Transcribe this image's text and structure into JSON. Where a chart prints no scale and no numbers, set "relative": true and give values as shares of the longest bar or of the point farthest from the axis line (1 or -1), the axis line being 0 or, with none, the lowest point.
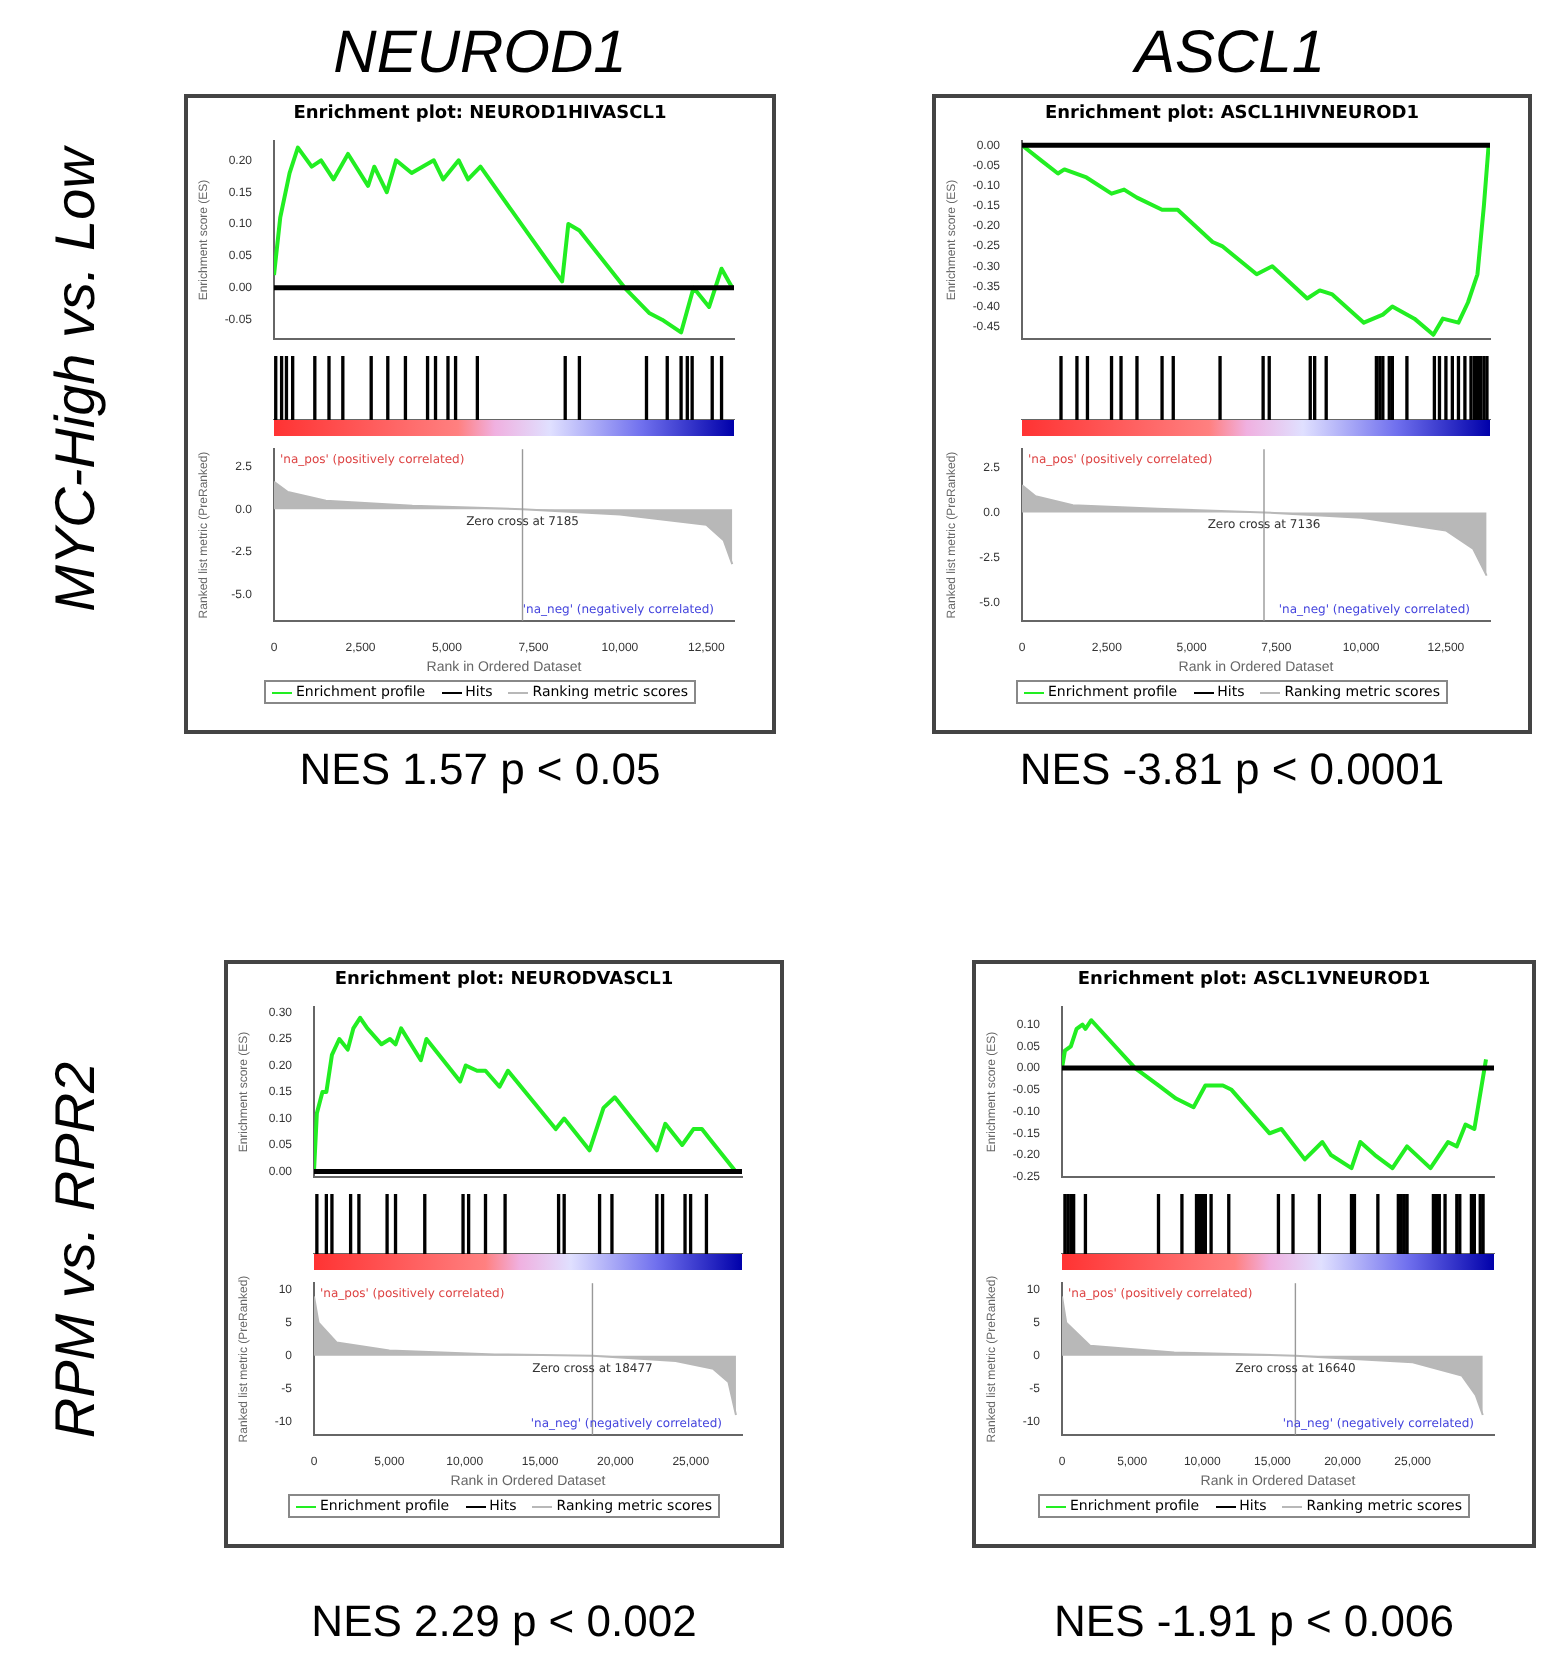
{
  "chart_data": [
    {
      "type": "line",
      "title": "Enrichment plot: NEUROD1HIVASCL1",
      "ylabel": "Enrichment score (ES)",
      "legend": "bottom",
      "tick_labels": "y",
      "xlim": [
        0,
        13300
      ],
      "ylim": [
        -0.08,
        0.23
      ],
      "yticks": [
        {
          "value": -0.05,
          "label": "-0.05"
        },
        {
          "value": 0,
          "label": "0.00"
        },
        {
          "value": 0.05,
          "label": "0.05"
        },
        {
          "value": 0.1,
          "label": "0.10"
        },
        {
          "value": 0.15,
          "label": "0.15"
        },
        {
          "value": 0.2,
          "label": "0.20"
        }
      ],
      "series": [
        {
          "name": "Enrichment profile",
          "color": "#22ee22",
          "x": [
            0,
            180,
            450,
            690,
            1090,
            1360,
            1720,
            2140,
            2720,
            2900,
            3260,
            3530,
            3980,
            4620,
            4890,
            5340,
            5610,
            5970,
            8330,
            8510,
            8830,
            10140,
            10860,
            11220,
            11770,
            12130,
            12580,
            12940,
            13250
          ],
          "values": [
            0.02,
            0.11,
            0.18,
            0.22,
            0.19,
            0.2,
            0.17,
            0.21,
            0.16,
            0.19,
            0.15,
            0.2,
            0.18,
            0.2,
            0.17,
            0.2,
            0.17,
            0.19,
            0.01,
            0.1,
            0.09,
            0,
            -0.04,
            -0.05,
            -0.07,
            0,
            -0.03,
            0.03,
            0
          ]
        }
      ],
      "ref_lines": [
        {
          "axis": "y",
          "value": 0,
          "color": "#000000"
        }
      ],
      "annotations": [
        "NEUROD1",
        "MYC-High vs. Low",
        "NES 1.57 p < 0.05"
      ]
    },
    {
      "type": "bar",
      "relative": true,
      "legend": "bottom",
      "tick_labels": false,
      "xlim": [
        0,
        13300
      ],
      "series": [
        {
          "name": "Hits",
          "color": "#000000",
          "x": [
            50,
            220,
            360,
            540,
            1180,
            1590,
            1990,
            2810,
            3290,
            3800,
            4440,
            4670,
            5030,
            5250,
            5880,
            8420,
            8830,
            10770,
            11370,
            11770,
            11950,
            12090,
            12670,
            12940
          ],
          "values": [
            1,
            1,
            1,
            1,
            1,
            1,
            1,
            1,
            1,
            1,
            1,
            1,
            1,
            1,
            1,
            1,
            1,
            1,
            1,
            1,
            1,
            1,
            1,
            1
          ]
        }
      ]
    },
    {
      "type": "area",
      "ylabel": "Ranked list metric (PreRanked)",
      "xlabel": "Rank in Ordered Dataset",
      "legend": "bottom",
      "xlim": [
        0,
        13300
      ],
      "xticks": [
        {
          "value": 0,
          "label": "0"
        },
        {
          "value": 2500,
          "label": "2,500"
        },
        {
          "value": 5000,
          "label": "5,000"
        },
        {
          "value": 7500,
          "label": "7,500"
        },
        {
          "value": 10000,
          "label": "10,000"
        },
        {
          "value": 12500,
          "label": "12,500"
        }
      ],
      "ylim": [
        -6.5,
        3.5
      ],
      "yticks": [
        {
          "value": 2.5,
          "label": "2.5"
        },
        {
          "value": 0,
          "label": "0.0"
        },
        {
          "value": -2.5,
          "label": "-2.5"
        },
        {
          "value": -5,
          "label": "-5.0"
        }
      ],
      "series": [
        {
          "name": "Ranking metric scores",
          "color": "#b8b8b8",
          "x": [
            0,
            400,
            1500,
            4000,
            7185,
            10000,
            12500,
            13000,
            13250
          ],
          "values": [
            1.6,
            1,
            0.5,
            0.2,
            0,
            -0.3,
            -0.9,
            -1.8,
            -3.2
          ]
        }
      ],
      "ref_lines": [
        {
          "axis": "x",
          "value": 7185,
          "label": "Zero cross at 7185",
          "color": "#999999"
        }
      ],
      "annotations": [
        "'na_pos' (positively correlated)",
        "'na_neg' (negatively correlated)"
      ]
    },
    {
      "type": "line",
      "title": "Enrichment plot: ASCL1HIVNEUROD1",
      "ylabel": "Enrichment score (ES)",
      "legend": "bottom",
      "tick_labels": "y",
      "xlim": [
        0,
        13800
      ],
      "ylim": [
        -0.48,
        0.01
      ],
      "yticks": [
        {
          "value": 0,
          "label": "0.00"
        },
        {
          "value": -0.05,
          "label": "-0.05"
        },
        {
          "value": -0.1,
          "label": "-0.10"
        },
        {
          "value": -0.15,
          "label": "-0.15"
        },
        {
          "value": -0.2,
          "label": "-0.20"
        },
        {
          "value": -0.25,
          "label": "-0.25"
        },
        {
          "value": -0.3,
          "label": "-0.30"
        },
        {
          "value": -0.35,
          "label": "-0.35"
        },
        {
          "value": -0.4,
          "label": "-0.40"
        },
        {
          "value": -0.45,
          "label": "-0.45"
        }
      ],
      "series": [
        {
          "name": "Enrichment profile",
          "color": "#22ee22",
          "x": [
            0,
            600,
            1060,
            1250,
            1900,
            2640,
            3010,
            3390,
            4130,
            4590,
            5620,
            5900,
            6920,
            7380,
            8410,
            8780,
            9150,
            10080,
            10640,
            10920,
            11570,
            12130,
            12410,
            12870,
            13150,
            13430,
            13620,
            13760
          ],
          "values": [
            0,
            -0.04,
            -0.07,
            -0.06,
            -0.08,
            -0.12,
            -0.11,
            -0.13,
            -0.16,
            -0.16,
            -0.24,
            -0.25,
            -0.32,
            -0.3,
            -0.38,
            -0.36,
            -0.37,
            -0.44,
            -0.42,
            -0.4,
            -0.43,
            -0.47,
            -0.43,
            -0.44,
            -0.39,
            -0.32,
            -0.15,
            0
          ]
        }
      ],
      "ref_lines": [
        {
          "axis": "y",
          "value": 0,
          "color": "#000000"
        }
      ],
      "annotations": [
        "ASCL1",
        "NES -3.81 p < 0.0001"
      ]
    },
    {
      "type": "bar",
      "relative": true,
      "legend": "bottom",
      "tick_labels": false,
      "xlim": [
        0,
        13800
      ],
      "series": [
        {
          "name": "Hits",
          "color": "#000000",
          "x": [
            1150,
            1620,
            1930,
            2640,
            2920,
            3390,
            4130,
            4460,
            5840,
            7110,
            7290,
            8500,
            8630,
            8970,
            10450,
            10550,
            10640,
            10830,
            10920,
            11350,
            12160,
            12310,
            12500,
            12690,
            12870,
            13060,
            13240,
            13340,
            13430,
            13520,
            13620,
            13710
          ],
          "values": [
            1,
            1,
            1,
            1,
            1,
            1,
            1,
            1,
            1,
            1,
            1,
            1,
            1,
            1,
            1,
            1,
            1,
            1,
            1,
            1,
            1,
            1,
            1,
            1,
            1,
            1,
            1,
            1,
            1,
            1,
            1,
            1
          ]
        }
      ]
    },
    {
      "type": "area",
      "ylabel": "Ranked list metric (PreRanked)",
      "xlabel": "Rank in Ordered Dataset",
      "legend": "bottom",
      "xlim": [
        0,
        13800
      ],
      "xticks": [
        {
          "value": 0,
          "label": "0"
        },
        {
          "value": 2500,
          "label": "2,500"
        },
        {
          "value": 5000,
          "label": "5,000"
        },
        {
          "value": 7500,
          "label": "7,500"
        },
        {
          "value": 10000,
          "label": "10,000"
        },
        {
          "value": 12500,
          "label": "12,500"
        }
      ],
      "ylim": [
        -6,
        3.5
      ],
      "yticks": [
        {
          "value": 2.5,
          "label": "2.5"
        },
        {
          "value": 0,
          "label": "0.0"
        },
        {
          "value": -2.5,
          "label": "-2.5"
        },
        {
          "value": -5,
          "label": "-5.0"
        }
      ],
      "series": [
        {
          "name": "Ranking metric scores",
          "color": "#b8b8b8",
          "x": [
            0,
            400,
            1500,
            4000,
            7136,
            10000,
            12500,
            13300,
            13700
          ],
          "values": [
            1.5,
            0.9,
            0.4,
            0.2,
            0,
            -0.3,
            -1,
            -2,
            -3.5
          ]
        }
      ],
      "ref_lines": [
        {
          "axis": "x",
          "value": 7136,
          "label": "Zero cross at 7136",
          "color": "#999999"
        }
      ],
      "annotations": [
        "'na_pos' (positively correlated)",
        "'na_neg' (negatively correlated)"
      ]
    },
    {
      "type": "line",
      "title": "Enrichment plot: NEURODVASCL1",
      "ylabel": "Enrichment score (ES)",
      "legend": "bottom",
      "tick_labels": "y",
      "xlim": [
        0,
        28400
      ],
      "ylim": [
        -0.01,
        0.31
      ],
      "yticks": [
        {
          "value": 0,
          "label": "0.00"
        },
        {
          "value": 0.05,
          "label": "0.05"
        },
        {
          "value": 0.1,
          "label": "0.10"
        },
        {
          "value": 0.15,
          "label": "0.15"
        },
        {
          "value": 0.2,
          "label": "0.20"
        },
        {
          "value": 0.25,
          "label": "0.25"
        },
        {
          "value": 0.3,
          "label": "0.30"
        }
      ],
      "series": [
        {
          "name": "Enrichment profile",
          "color": "#22ee22",
          "x": [
            0,
            190,
            560,
            820,
            1190,
            1680,
            2240,
            2610,
            3060,
            3540,
            4480,
            5040,
            5410,
            5780,
            7090,
            7460,
            9700,
            10070,
            10820,
            11380,
            12310,
            12870,
            16040,
            16600,
            18280,
            19210,
            19960,
            22750,
            23310,
            24430,
            25180,
            25740,
            26300,
            27980
          ],
          "values": [
            0,
            0.11,
            0.15,
            0.15,
            0.22,
            0.25,
            0.23,
            0.27,
            0.29,
            0.27,
            0.24,
            0.25,
            0.24,
            0.27,
            0.21,
            0.25,
            0.17,
            0.2,
            0.19,
            0.19,
            0.16,
            0.19,
            0.08,
            0.1,
            0.04,
            0.12,
            0.14,
            0.04,
            0.09,
            0.05,
            0.08,
            0.08,
            0.06,
            0
          ]
        }
      ],
      "ref_lines": [
        {
          "axis": "y",
          "value": 0,
          "color": "#000000"
        }
      ],
      "annotations": [
        "RPM vs. RPR2",
        "NES 2.29 p < 0.002"
      ]
    },
    {
      "type": "bar",
      "relative": true,
      "legend": "bottom",
      "tick_labels": false,
      "xlim": [
        0,
        28400
      ],
      "series": [
        {
          "name": "Hits",
          "color": "#000000",
          "x": [
            190,
            820,
            1190,
            2430,
            2980,
            4850,
            5410,
            7350,
            9890,
            10260,
            11380,
            12680,
            16230,
            16600,
            18950,
            19770,
            22750,
            23130,
            24620,
            24990,
            26040
          ],
          "values": [
            1,
            1,
            1,
            1,
            1,
            1,
            1,
            1,
            1,
            1,
            1,
            1,
            1,
            1,
            1,
            1,
            1,
            1,
            1,
            1,
            1
          ]
        }
      ]
    },
    {
      "type": "area",
      "ylabel": "Ranked list metric (PreRanked)",
      "xlabel": "Rank in Ordered Dataset",
      "legend": "bottom",
      "xlim": [
        0,
        28400
      ],
      "xticks": [
        {
          "value": 0,
          "label": "0"
        },
        {
          "value": 5000,
          "label": "5,000"
        },
        {
          "value": 10000,
          "label": "10,000"
        },
        {
          "value": 15000,
          "label": "15,000"
        },
        {
          "value": 20000,
          "label": "20,000"
        },
        {
          "value": 25000,
          "label": "25,000"
        }
      ],
      "ylim": [
        -12,
        11
      ],
      "yticks": [
        10,
        5,
        0,
        -5,
        -10
      ],
      "series": [
        {
          "name": "Ranking metric scores",
          "color": "#b8b8b8",
          "x": [
            0,
            300,
            1500,
            5000,
            12000,
            18477,
            24000,
            26500,
            27500,
            28000
          ],
          "values": [
            9,
            5,
            2,
            0.8,
            0.2,
            0,
            -0.8,
            -2,
            -4,
            -9
          ]
        }
      ],
      "ref_lines": [
        {
          "axis": "x",
          "value": 18477,
          "label": "Zero cross at 18477",
          "color": "#999999"
        }
      ],
      "annotations": [
        "'na_pos' (positively correlated)",
        "'na_neg' (negatively correlated)"
      ]
    },
    {
      "type": "line",
      "title": "Enrichment plot: ASCL1VNEUROD1",
      "ylabel": "Enrichment score (ES)",
      "legend": "bottom",
      "tick_labels": "y",
      "xlim": [
        0,
        30800
      ],
      "ylim": [
        -0.25,
        0.14
      ],
      "yticks": [
        {
          "value": 0.1,
          "label": "0.10"
        },
        {
          "value": 0.05,
          "label": "0.05"
        },
        {
          "value": 0,
          "label": "0.00"
        },
        {
          "value": -0.05,
          "label": "-0.05"
        },
        {
          "value": -0.1,
          "label": "-0.10"
        },
        {
          "value": -0.15,
          "label": "-0.15"
        },
        {
          "value": -0.2,
          "label": "-0.20"
        },
        {
          "value": -0.25,
          "label": "-0.25"
        }
      ],
      "series": [
        {
          "name": "Enrichment profile",
          "color": "#22ee22",
          "x": [
            0,
            210,
            630,
            1040,
            1460,
            1670,
            2090,
            5210,
            6880,
            8130,
            9380,
            10220,
            11470,
            12090,
            14800,
            15640,
            17310,
            18560,
            19180,
            20640,
            21270,
            22310,
            23560,
            24600,
            26270,
            27520,
            28150,
            28770,
            29400,
            30230
          ],
          "values": [
            0,
            0.04,
            0.05,
            0.09,
            0.1,
            0.09,
            0.11,
            0,
            -0.04,
            -0.07,
            -0.09,
            -0.04,
            -0.04,
            -0.05,
            -0.15,
            -0.14,
            -0.21,
            -0.17,
            -0.2,
            -0.23,
            -0.17,
            -0.2,
            -0.23,
            -0.18,
            -0.23,
            -0.17,
            -0.18,
            -0.13,
            -0.14,
            0.02
          ]
        }
      ],
      "ref_lines": [
        {
          "axis": "y",
          "value": 0,
          "color": "#000000"
        }
      ],
      "annotations": [
        "NES -1.91 p < 0.006"
      ]
    },
    {
      "type": "bar",
      "relative": true,
      "legend": "bottom",
      "tick_labels": false,
      "xlim": [
        0,
        30800
      ],
      "series": [
        {
          "name": "Hits",
          "color": "#000000",
          "x": [
            210,
            420,
            630,
            830,
            1670,
            6880,
            8550,
            9590,
            9800,
            10010,
            10220,
            10630,
            11890,
            15430,
            16470,
            18350,
            20640,
            20850,
            22520,
            23980,
            24190,
            24400,
            24600,
            26480,
            26690,
            26900,
            27310,
            28150,
            28360,
            29190,
            29400,
            29820,
            30020
          ],
          "values": [
            1,
            1,
            1,
            1,
            1,
            1,
            1,
            1,
            1,
            1,
            1,
            1,
            1,
            1,
            1,
            1,
            1,
            1,
            1,
            1,
            1,
            1,
            1,
            1,
            1,
            1,
            1,
            1,
            1,
            1,
            1,
            1,
            1
          ]
        }
      ]
    },
    {
      "type": "area",
      "ylabel": "Ranked list metric (PreRanked)",
      "xlabel": "Rank in Ordered Dataset",
      "legend": "bottom",
      "xlim": [
        0,
        30800
      ],
      "xticks": [
        {
          "value": 0,
          "label": "0"
        },
        {
          "value": 5000,
          "label": "5,000"
        },
        {
          "value": 10000,
          "label": "10,000"
        },
        {
          "value": 15000,
          "label": "15,000"
        },
        {
          "value": 20000,
          "label": "20,000"
        },
        {
          "value": 25000,
          "label": "25,000"
        }
      ],
      "ylim": [
        -12,
        11
      ],
      "yticks": [
        10,
        5,
        0,
        -5,
        -10
      ],
      "series": [
        {
          "name": "Ranking metric scores",
          "color": "#b8b8b8",
          "x": [
            0,
            300,
            2000,
            8000,
            16640,
            25000,
            28500,
            29500,
            30000
          ],
          "values": [
            9,
            5,
            1.5,
            0.5,
            0,
            -1,
            -3,
            -6,
            -9
          ]
        }
      ],
      "ref_lines": [
        {
          "axis": "x",
          "value": 16640,
          "label": "Zero cross at 16640",
          "color": "#999999"
        }
      ],
      "annotations": [
        "'na_pos' (positively correlated)",
        "'na_neg' (negatively correlated)"
      ]
    }
  ]
}
